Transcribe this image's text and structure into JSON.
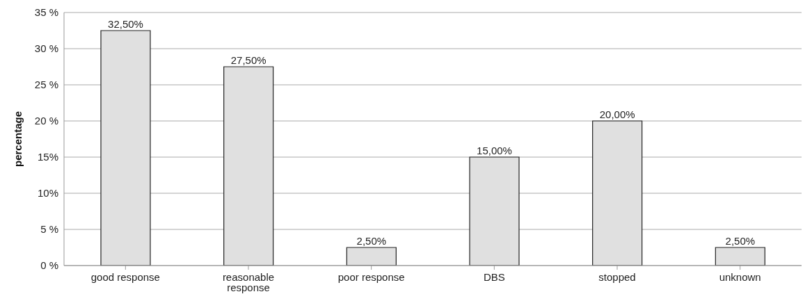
{
  "chart_data": {
    "type": "bar",
    "ylabel": "percentage",
    "categories": [
      "good response",
      "reasonable response",
      "poor response",
      "DBS",
      "stopped",
      "unknown"
    ],
    "values": [
      32.5,
      27.5,
      2.5,
      15,
      20,
      2.5
    ],
    "value_labels": [
      "32,50%",
      "27,50%",
      "2,50%",
      "15,00%",
      "20,00%",
      "2,50%"
    ],
    "color": "#e0e0e0",
    "ylim": [
      0,
      35
    ],
    "yticks": [
      {
        "value": 0,
        "label": "0 %"
      },
      {
        "value": 5,
        "label": "5 %"
      },
      {
        "value": 10,
        "label": "10%"
      },
      {
        "value": 15,
        "label": "15%"
      },
      {
        "value": 20,
        "label": "20 %"
      },
      {
        "value": 25,
        "label": "25 %"
      },
      {
        "value": 30,
        "label": "30 %"
      },
      {
        "value": 35,
        "label": "35 %"
      }
    ],
    "grid": "y"
  }
}
